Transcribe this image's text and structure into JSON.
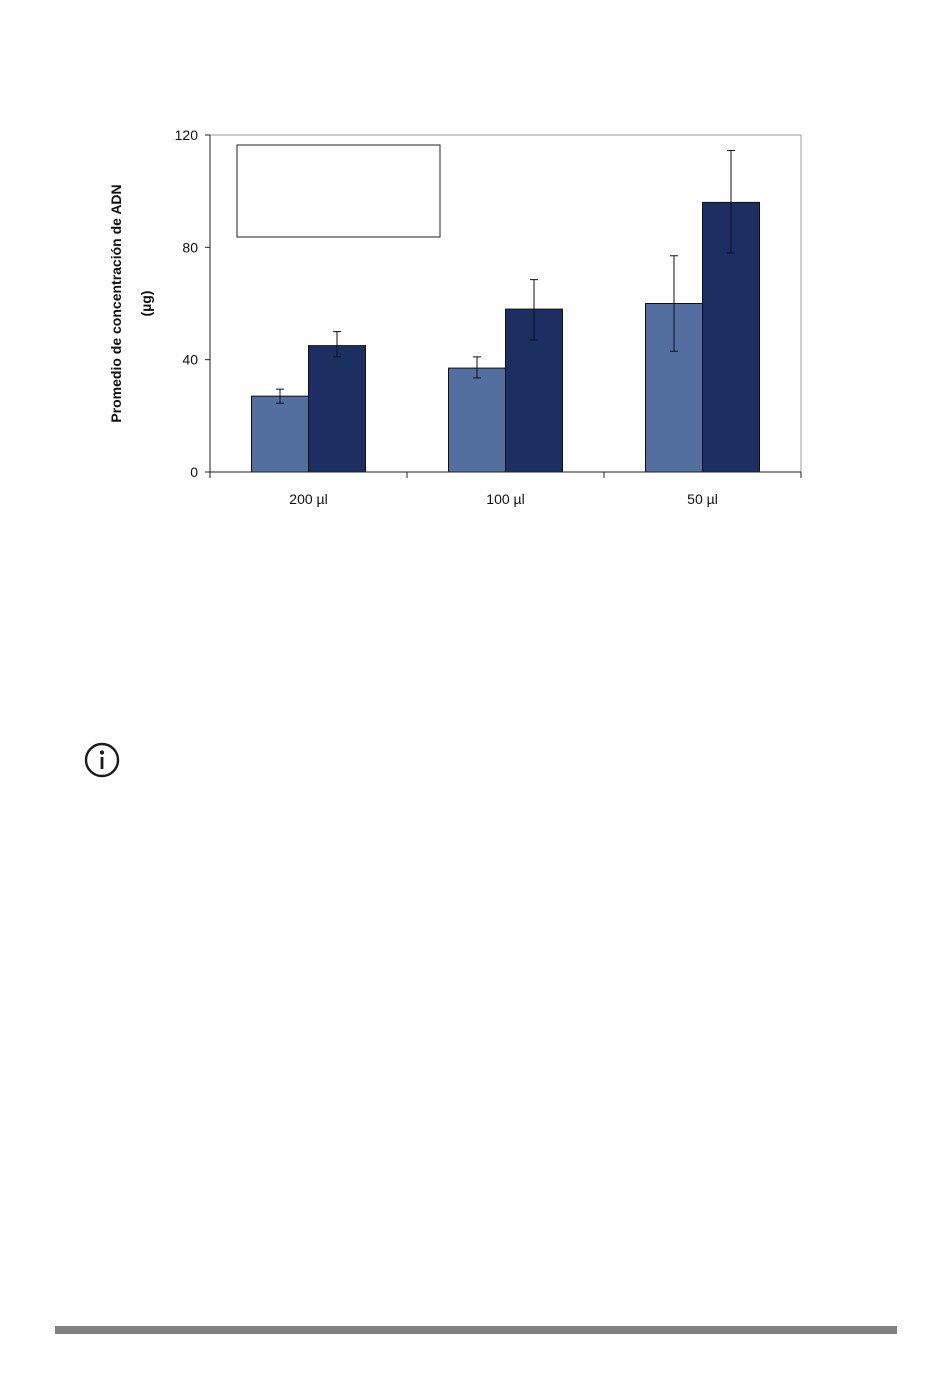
{
  "chart_data": {
    "type": "bar",
    "title": "",
    "ylabel_lines": [
      "Promedio de concentración de  ADN",
      "(µg)"
    ],
    "xlabel": "",
    "categories": [
      "200 µl",
      "100 µl",
      "50 µl"
    ],
    "ylim": [
      0,
      120
    ],
    "yticks": [
      0,
      40,
      80,
      120
    ],
    "grid": false,
    "legend": "top-left box (no entries visible)",
    "series": [
      {
        "color": "#526fa0",
        "values": [
          27,
          37,
          60
        ],
        "error": [
          [
            24.5,
            29.5
          ],
          [
            33.5,
            41
          ],
          [
            43,
            77
          ]
        ]
      },
      {
        "color": "#1c2f63",
        "values": [
          45,
          58,
          96
        ],
        "error": [
          [
            41,
            50
          ],
          [
            47,
            68.5
          ],
          [
            78,
            114.5
          ]
        ]
      }
    ]
  },
  "icons": {
    "note": "info-icon"
  },
  "colors": {
    "footer_bar": "#808080"
  }
}
